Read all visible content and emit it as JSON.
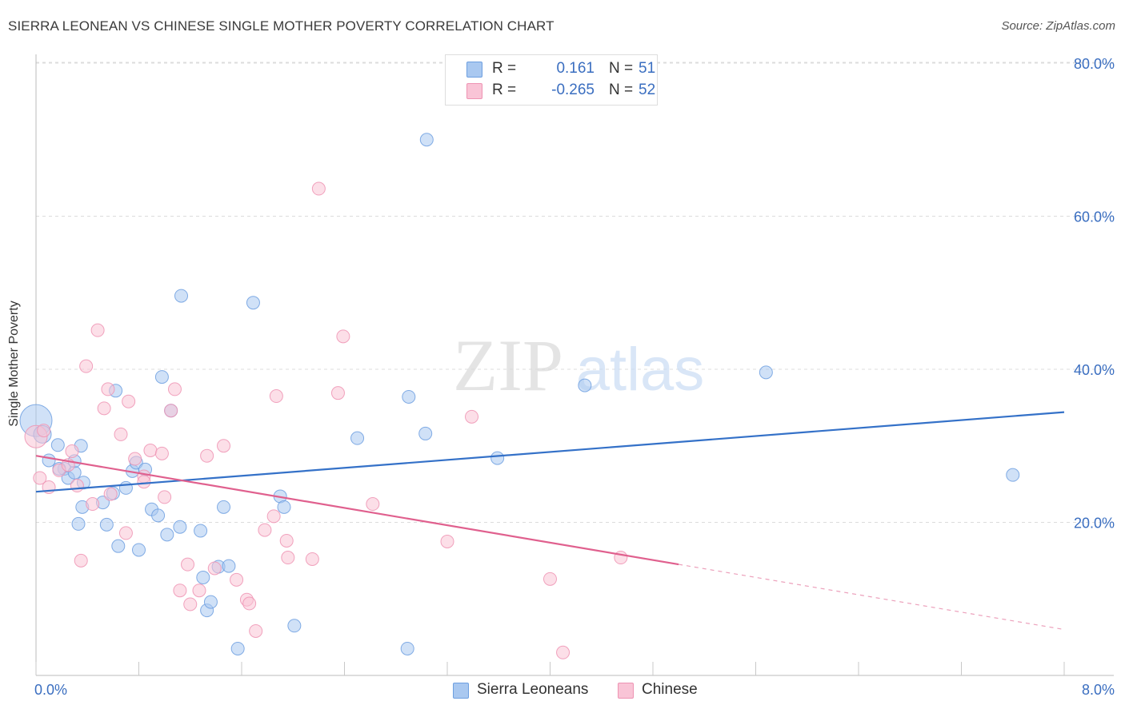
{
  "title": "SIERRA LEONEAN VS CHINESE SINGLE MOTHER POVERTY CORRELATION CHART",
  "source": "Source: ZipAtlas.com",
  "watermark": {
    "zip": "ZIP",
    "atlas": "atlas"
  },
  "legend": {
    "rows": [
      {
        "r_label": "R =",
        "r_value": "0.161",
        "n_label": "N =",
        "n_value": "51",
        "color": "#a9c8f0",
        "border": "#6d9fe0"
      },
      {
        "r_label": "R =",
        "r_value": "-0.265",
        "n_label": "N =",
        "n_value": "52",
        "color": "#f9c4d6",
        "border": "#ee93b3"
      }
    ]
  },
  "bottom_legend": [
    {
      "label": "Sierra Leoneans",
      "color": "#a9c8f0",
      "border": "#6d9fe0"
    },
    {
      "label": "Chinese",
      "color": "#f9c4d6",
      "border": "#ee93b3"
    }
  ],
  "chart_data": {
    "type": "scatter",
    "title": "SIERRA LEONEAN VS CHINESE SINGLE MOTHER POVERTY CORRELATION CHART",
    "xlabel": "",
    "ylabel": "Single Mother Poverty",
    "xlim": [
      0,
      8
    ],
    "ylim": [
      0,
      80
    ],
    "x_tick_labels": [
      "0.0%",
      "8.0%"
    ],
    "y_tick_labels": [
      "20.0%",
      "40.0%",
      "60.0%",
      "80.0%"
    ],
    "y_ticks": [
      20,
      40,
      60,
      80
    ],
    "grid": true,
    "series": [
      {
        "name": "Sierra Leoneans",
        "color": "#6d9fe0",
        "fill": "#a9c8f0",
        "trend": {
          "x0": 0,
          "y0": 24.0,
          "x1": 8,
          "y1": 34.4,
          "dash_from": null,
          "line_color": "#3471c8"
        },
        "points": [
          [
            0.0,
            33.3,
            20
          ],
          [
            0.05,
            31.5,
            11
          ],
          [
            0.1,
            28.1,
            8
          ],
          [
            0.17,
            30.1,
            8
          ],
          [
            0.22,
            27.0,
            8
          ],
          [
            0.25,
            25.8,
            8
          ],
          [
            0.3,
            26.5,
            8
          ],
          [
            0.3,
            28.0,
            8
          ],
          [
            0.35,
            30.0,
            8
          ],
          [
            0.37,
            25.2,
            8
          ],
          [
            0.33,
            19.8,
            8
          ],
          [
            0.36,
            22.0,
            8
          ],
          [
            0.52,
            22.6,
            8
          ],
          [
            0.55,
            19.7,
            8
          ],
          [
            0.6,
            23.8,
            8
          ],
          [
            0.62,
            37.2,
            8
          ],
          [
            0.64,
            16.9,
            8
          ],
          [
            0.7,
            24.5,
            8
          ],
          [
            0.75,
            26.7,
            8
          ],
          [
            0.78,
            27.8,
            8
          ],
          [
            0.8,
            16.4,
            8
          ],
          [
            0.85,
            26.9,
            8
          ],
          [
            0.9,
            21.7,
            8
          ],
          [
            0.95,
            20.9,
            8
          ],
          [
            0.98,
            39.0,
            8
          ],
          [
            1.02,
            18.4,
            8
          ],
          [
            1.05,
            34.6,
            8
          ],
          [
            1.12,
            19.4,
            8
          ],
          [
            1.13,
            49.6,
            8
          ],
          [
            1.28,
            18.9,
            8
          ],
          [
            1.33,
            8.5,
            8
          ],
          [
            1.3,
            12.8,
            8
          ],
          [
            1.36,
            9.6,
            8
          ],
          [
            1.42,
            14.2,
            8
          ],
          [
            1.46,
            22.0,
            8
          ],
          [
            1.5,
            14.3,
            8
          ],
          [
            1.57,
            3.5,
            8
          ],
          [
            1.69,
            48.7,
            8
          ],
          [
            1.9,
            23.4,
            8
          ],
          [
            1.93,
            22.0,
            8
          ],
          [
            2.01,
            6.5,
            8
          ],
          [
            2.5,
            31.0,
            8
          ],
          [
            2.89,
            3.5,
            8
          ],
          [
            2.9,
            36.4,
            8
          ],
          [
            3.03,
            31.6,
            8
          ],
          [
            3.04,
            70.0,
            8
          ],
          [
            3.59,
            28.4,
            8
          ],
          [
            4.27,
            37.9,
            8
          ],
          [
            5.68,
            39.6,
            8
          ],
          [
            7.6,
            26.2,
            8
          ],
          [
            0.18,
            27.0,
            8
          ]
        ]
      },
      {
        "name": "Chinese",
        "color": "#ee93b3",
        "fill": "#f9c4d6",
        "trend": {
          "x0": 0,
          "y0": 28.7,
          "x1": 8,
          "y1": 6.0,
          "dash_from": 5.0,
          "line_color": "#e0608e"
        },
        "points": [
          [
            0.0,
            31.2,
            14
          ],
          [
            0.03,
            25.8,
            8
          ],
          [
            0.1,
            24.6,
            8
          ],
          [
            0.18,
            26.8,
            8
          ],
          [
            0.25,
            27.5,
            8
          ],
          [
            0.28,
            29.3,
            8
          ],
          [
            0.32,
            24.8,
            8
          ],
          [
            0.35,
            15.0,
            8
          ],
          [
            0.39,
            40.4,
            8
          ],
          [
            0.44,
            22.4,
            8
          ],
          [
            0.48,
            45.1,
            8
          ],
          [
            0.53,
            34.9,
            8
          ],
          [
            0.56,
            37.4,
            8
          ],
          [
            0.58,
            23.7,
            8
          ],
          [
            0.66,
            31.5,
            8
          ],
          [
            0.7,
            18.6,
            8
          ],
          [
            0.72,
            35.8,
            8
          ],
          [
            0.77,
            28.3,
            8
          ],
          [
            0.84,
            26.0,
            8
          ],
          [
            0.84,
            25.3,
            8
          ],
          [
            0.89,
            29.4,
            8
          ],
          [
            0.98,
            29.0,
            8
          ],
          [
            1.0,
            23.3,
            8
          ],
          [
            1.05,
            34.6,
            8
          ],
          [
            1.08,
            37.4,
            8
          ],
          [
            1.12,
            11.1,
            8
          ],
          [
            1.18,
            14.5,
            8
          ],
          [
            1.2,
            9.3,
            8
          ],
          [
            1.27,
            11.1,
            8
          ],
          [
            1.33,
            28.7,
            8
          ],
          [
            1.39,
            14.0,
            8
          ],
          [
            1.46,
            30.0,
            8
          ],
          [
            1.56,
            12.5,
            8
          ],
          [
            1.64,
            9.9,
            8
          ],
          [
            1.66,
            9.4,
            8
          ],
          [
            1.71,
            5.8,
            8
          ],
          [
            1.78,
            19.0,
            8
          ],
          [
            1.85,
            20.8,
            8
          ],
          [
            1.87,
            36.5,
            8
          ],
          [
            1.95,
            17.6,
            8
          ],
          [
            1.96,
            15.4,
            8
          ],
          [
            2.15,
            15.2,
            8
          ],
          [
            2.2,
            63.6,
            8
          ],
          [
            2.35,
            36.9,
            8
          ],
          [
            2.39,
            44.3,
            8
          ],
          [
            2.62,
            22.4,
            8
          ],
          [
            3.2,
            17.5,
            8
          ],
          [
            3.39,
            33.8,
            8
          ],
          [
            4.0,
            12.6,
            8
          ],
          [
            4.1,
            3.0,
            8
          ],
          [
            4.55,
            15.4,
            8
          ],
          [
            0.06,
            32.0,
            8
          ]
        ]
      }
    ]
  }
}
